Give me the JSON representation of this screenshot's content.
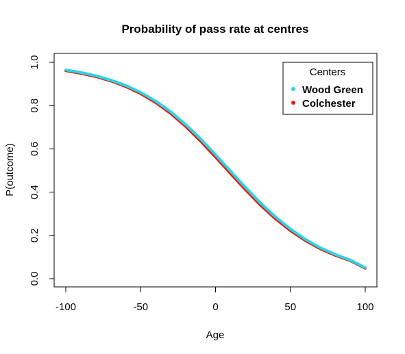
{
  "chart_data": {
    "type": "line",
    "title": "Probability of pass rate at centres",
    "xlabel": "Age",
    "ylabel": "P(outcome)",
    "xlim": [
      -100,
      100
    ],
    "ylim": [
      0,
      1
    ],
    "xticks": [
      -100,
      -50,
      0,
      50,
      100
    ],
    "yticks": [
      0.0,
      0.2,
      0.4,
      0.6,
      0.8,
      1.0
    ],
    "ytick_labels": [
      "0.0",
      "0.2",
      "0.4",
      "0.6",
      "0.8",
      "1.0"
    ],
    "grid": false,
    "legend": {
      "title": "Centers",
      "placement": "top-right"
    },
    "series": [
      {
        "name": "Colchester",
        "color": "#e8190c",
        "x": [
          -100,
          -90,
          -80,
          -70,
          -60,
          -50,
          -40,
          -30,
          -20,
          -10,
          0,
          10,
          20,
          30,
          40,
          50,
          60,
          70,
          80,
          90,
          100
        ],
        "y": [
          0.961,
          0.949,
          0.934,
          0.914,
          0.888,
          0.855,
          0.814,
          0.764,
          0.704,
          0.636,
          0.562,
          0.486,
          0.411,
          0.34,
          0.277,
          0.222,
          0.176,
          0.138,
          0.108,
          0.083,
          0.048
        ]
      },
      {
        "name": "Wood Green",
        "color": "#29d5e6",
        "x": [
          -100,
          -90,
          -80,
          -70,
          -60,
          -50,
          -40,
          -30,
          -20,
          -10,
          0,
          10,
          20,
          30,
          40,
          50,
          60,
          70,
          80,
          90,
          100
        ],
        "y": [
          0.965,
          0.953,
          0.938,
          0.918,
          0.893,
          0.861,
          0.821,
          0.772,
          0.713,
          0.646,
          0.573,
          0.497,
          0.422,
          0.35,
          0.286,
          0.23,
          0.182,
          0.143,
          0.112,
          0.086,
          0.051
        ]
      }
    ]
  }
}
